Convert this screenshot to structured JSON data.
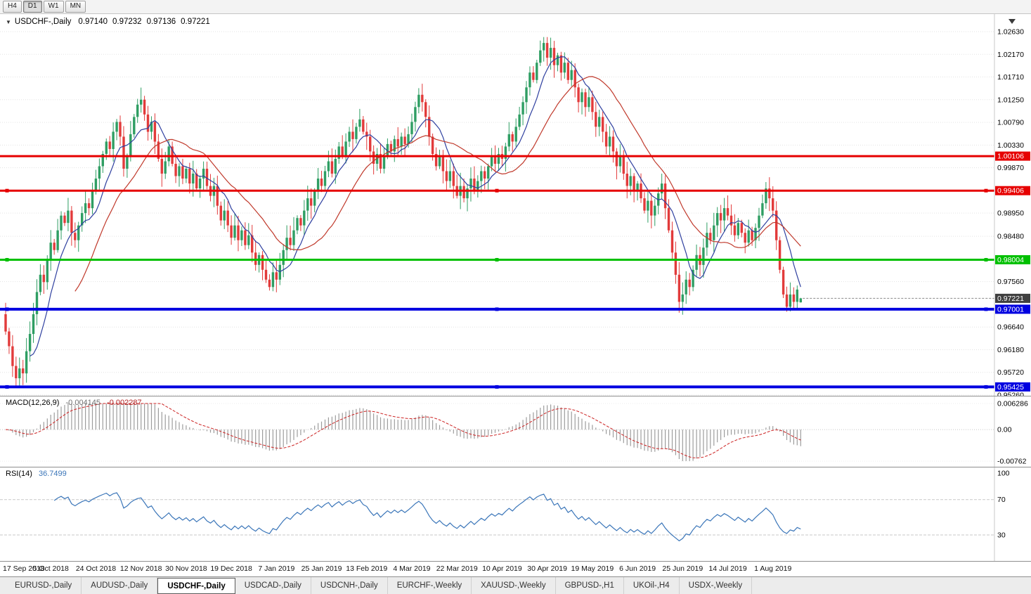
{
  "toolbar": {
    "timeframes": [
      {
        "label": "H4",
        "active": false
      },
      {
        "label": "D1",
        "active": true
      },
      {
        "label": "W1",
        "active": false
      },
      {
        "label": "MN",
        "active": false
      }
    ]
  },
  "chart_header": {
    "collapse_icon": "▼",
    "symbol": "USDCHF-,Daily",
    "open": "0.97140",
    "high": "0.97232",
    "low": "0.97136",
    "close": "0.97221"
  },
  "colors": {
    "bull": "#2f9e63",
    "bear": "#e23b3b",
    "ma_fast": "#2e3f9f",
    "ma_slow": "#c0392b",
    "grid": "#e3e3e3"
  },
  "chart_data": {
    "type": "candlestick",
    "symbol": "USDCHF",
    "timeframe": "Daily",
    "price_axis": {
      "max_price": 1.0263,
      "min_price": 0.9526,
      "ticks": [
        "1.02630",
        "1.02170",
        "1.01710",
        "1.01250",
        "1.00790",
        "1.00330",
        "0.99870",
        "0.98950",
        "0.98480",
        "0.97560",
        "0.96640",
        "0.96180",
        "0.95720",
        "0.95260"
      ]
    },
    "hlines": [
      {
        "value": 1.00106,
        "label": "1.00106",
        "color": "#e60000",
        "width": 3,
        "handles": false
      },
      {
        "value": 0.99406,
        "label": "0.99406",
        "color": "#e60000",
        "width": 3,
        "handles": true
      },
      {
        "value": 0.98004,
        "label": "0.98004",
        "color": "#00c000",
        "width": 3,
        "handles": true
      },
      {
        "value": 0.97001,
        "label": "0.97001",
        "color": "#0000e0",
        "width": 4,
        "handles": true
      },
      {
        "value": 0.95425,
        "label": "0.95425",
        "color": "#0000e0",
        "width": 4,
        "handles": true
      }
    ],
    "current_price": {
      "value": 0.97221,
      "label": "0.97221",
      "color": "#404040"
    },
    "last_bar": {
      "open": 0.9714,
      "high": 0.97232,
      "low": 0.97136,
      "close": 0.97221
    },
    "first_open": 0.969,
    "closes": [
      0.9655,
      0.9625,
      0.9585,
      0.956,
      0.958,
      0.957,
      0.9615,
      0.965,
      0.969,
      0.9735,
      0.977,
      0.9755,
      0.98,
      0.9835,
      0.982,
      0.986,
      0.989,
      0.9875,
      0.99,
      0.9855,
      0.984,
      0.987,
      0.9895,
      0.9915,
      0.9905,
      0.994,
      0.9965,
      0.999,
      1.0015,
      1.004,
      1.0025,
      1.006,
      1.008,
      1.005,
      0.9985,
      1.001,
      1.0055,
      1.009,
      1.0115,
      1.0125,
      1.0095,
      1.006,
      1.008,
      1.004,
      1.0005,
      0.9975,
      1.0,
      1.003,
      0.9995,
      0.997,
      0.999,
      0.9965,
      0.9985,
      0.9955,
      0.9975,
      0.9945,
      0.9965,
      0.9985,
      0.995,
      0.993,
      0.995,
      0.991,
      0.988,
      0.99,
      0.987,
      0.9845,
      0.987,
      0.984,
      0.986,
      0.983,
      0.985,
      0.9815,
      0.979,
      0.981,
      0.978,
      0.976,
      0.9745,
      0.9775,
      0.976,
      0.979,
      0.982,
      0.9845,
      0.983,
      0.986,
      0.9885,
      0.987,
      0.99,
      0.9925,
      0.991,
      0.994,
      0.9965,
      0.995,
      0.998,
      1.0,
      0.9975,
      1.0005,
      1.003,
      1.001,
      1.004,
      1.006,
      1.0045,
      1.007,
      1.0085,
      1.006,
      1.005,
      1.002,
      0.9995,
      1.0015,
      0.9985,
      1.001,
      1.0035,
      1.002,
      1.0045,
      1.003,
      1.005,
      1.0035,
      1.0055,
      1.008,
      1.011,
      1.0135,
      1.012,
      1.009,
      1.005,
      1.0015,
      0.999,
      1.001,
      0.998,
      0.996,
      0.998,
      0.995,
      0.993,
      0.995,
      0.9925,
      0.9945,
      0.9965,
      0.994,
      0.996,
      0.998,
      0.9965,
      0.999,
      1.001,
      0.9995,
      1.0015,
      1.0005,
      1.003,
      1.0055,
      1.004,
      1.007,
      1.0095,
      1.012,
      1.015,
      1.018,
      1.0165,
      1.02,
      1.0225,
      1.024,
      1.021,
      1.023,
      1.0195,
      1.0215,
      1.018,
      1.02,
      1.0165,
      1.0185,
      1.015,
      1.012,
      1.014,
      1.011,
      1.013,
      1.01,
      1.007,
      1.009,
      1.006,
      1.003,
      1.005,
      1.002,
      0.999,
      1.001,
      0.9975,
      0.995,
      0.997,
      0.994,
      0.9955,
      0.9925,
      0.99,
      0.992,
      0.989,
      0.991,
      0.9935,
      0.9955,
      0.9905,
      0.986,
      0.9815,
      0.977,
      0.9715,
      0.973,
      0.976,
      0.9745,
      0.978,
      0.981,
      0.979,
      0.9825,
      0.9855,
      0.984,
      0.987,
      0.9895,
      0.988,
      0.9905,
      0.989,
      0.987,
      0.985,
      0.9875,
      0.9855,
      0.9835,
      0.986,
      0.984,
      0.9865,
      0.989,
      0.9915,
      0.9945,
      0.9925,
      0.99,
      0.984,
      0.978,
      0.973,
      0.9705,
      0.973,
      0.9715,
      0.974,
      0.97221
    ],
    "wick_overrides": {
      "3": {
        "low": 0.9542
      },
      "76": {
        "low": 0.9738
      },
      "155": {
        "high": 1.0252
      },
      "189": {
        "high": 0.9975
      },
      "194": {
        "low": 0.9693
      },
      "219": {
        "high": 0.9958
      },
      "225": {
        "low": 0.9695
      }
    },
    "ma": [
      {
        "period": 8,
        "color": "#2e3f9f"
      },
      {
        "period": 21,
        "color": "#c0392b"
      }
    ],
    "x_labels": [
      {
        "label": "17 Sep 2018",
        "bar": 0
      },
      {
        "label": "5 Oct 2018",
        "bar": 13
      },
      {
        "label": "24 Oct 2018",
        "bar": 26
      },
      {
        "label": "12 Nov 2018",
        "bar": 39
      },
      {
        "label": "30 Nov 2018",
        "bar": 52
      },
      {
        "label": "19 Dec 2018",
        "bar": 65
      },
      {
        "label": "7 Jan 2019",
        "bar": 78
      },
      {
        "label": "25 Jan 2019",
        "bar": 91
      },
      {
        "label": "13 Feb 2019",
        "bar": 104
      },
      {
        "label": "4 Mar 2019",
        "bar": 117
      },
      {
        "label": "22 Mar 2019",
        "bar": 130
      },
      {
        "label": "10 Apr 2019",
        "bar": 143
      },
      {
        "label": "30 Apr 2019",
        "bar": 156
      },
      {
        "label": "19 May 2019",
        "bar": 169
      },
      {
        "label": "6 Jun 2019",
        "bar": 182
      },
      {
        "label": "25 Jun 2019",
        "bar": 195
      },
      {
        "label": "14 Jul 2019",
        "bar": 208
      },
      {
        "label": "1 Aug 2019",
        "bar": 221
      }
    ],
    "macd": {
      "title": "MACD(12,26,9)",
      "value_main": "-0.004145",
      "value_signal": "-0.002287",
      "axis": [
        "0.006286",
        "0.00",
        "-0.00762"
      ],
      "max": 0.006286,
      "min": -0.00762,
      "hist_color": "#9c9c9c",
      "signal_color": "#cc2222"
    },
    "rsi": {
      "title": "RSI(14)",
      "value": "36.7499",
      "levels": [
        70,
        30
      ],
      "axis_labels": [
        "100",
        "70",
        "30"
      ],
      "color": "#3b76b9"
    }
  },
  "tabs": [
    {
      "label": "EURUSD-,Daily",
      "active": false
    },
    {
      "label": "AUDUSD-,Daily",
      "active": false
    },
    {
      "label": "USDCHF-,Daily",
      "active": true
    },
    {
      "label": "USDCAD-,Daily",
      "active": false
    },
    {
      "label": "USDCNH-,Daily",
      "active": false
    },
    {
      "label": "EURCHF-,Weekly",
      "active": false
    },
    {
      "label": "XAUUSD-,Weekly",
      "active": false
    },
    {
      "label": "GBPUSD-,H1",
      "active": false
    },
    {
      "label": "UKOil-,H4",
      "active": false
    },
    {
      "label": "USDX-,Weekly",
      "active": false
    }
  ]
}
